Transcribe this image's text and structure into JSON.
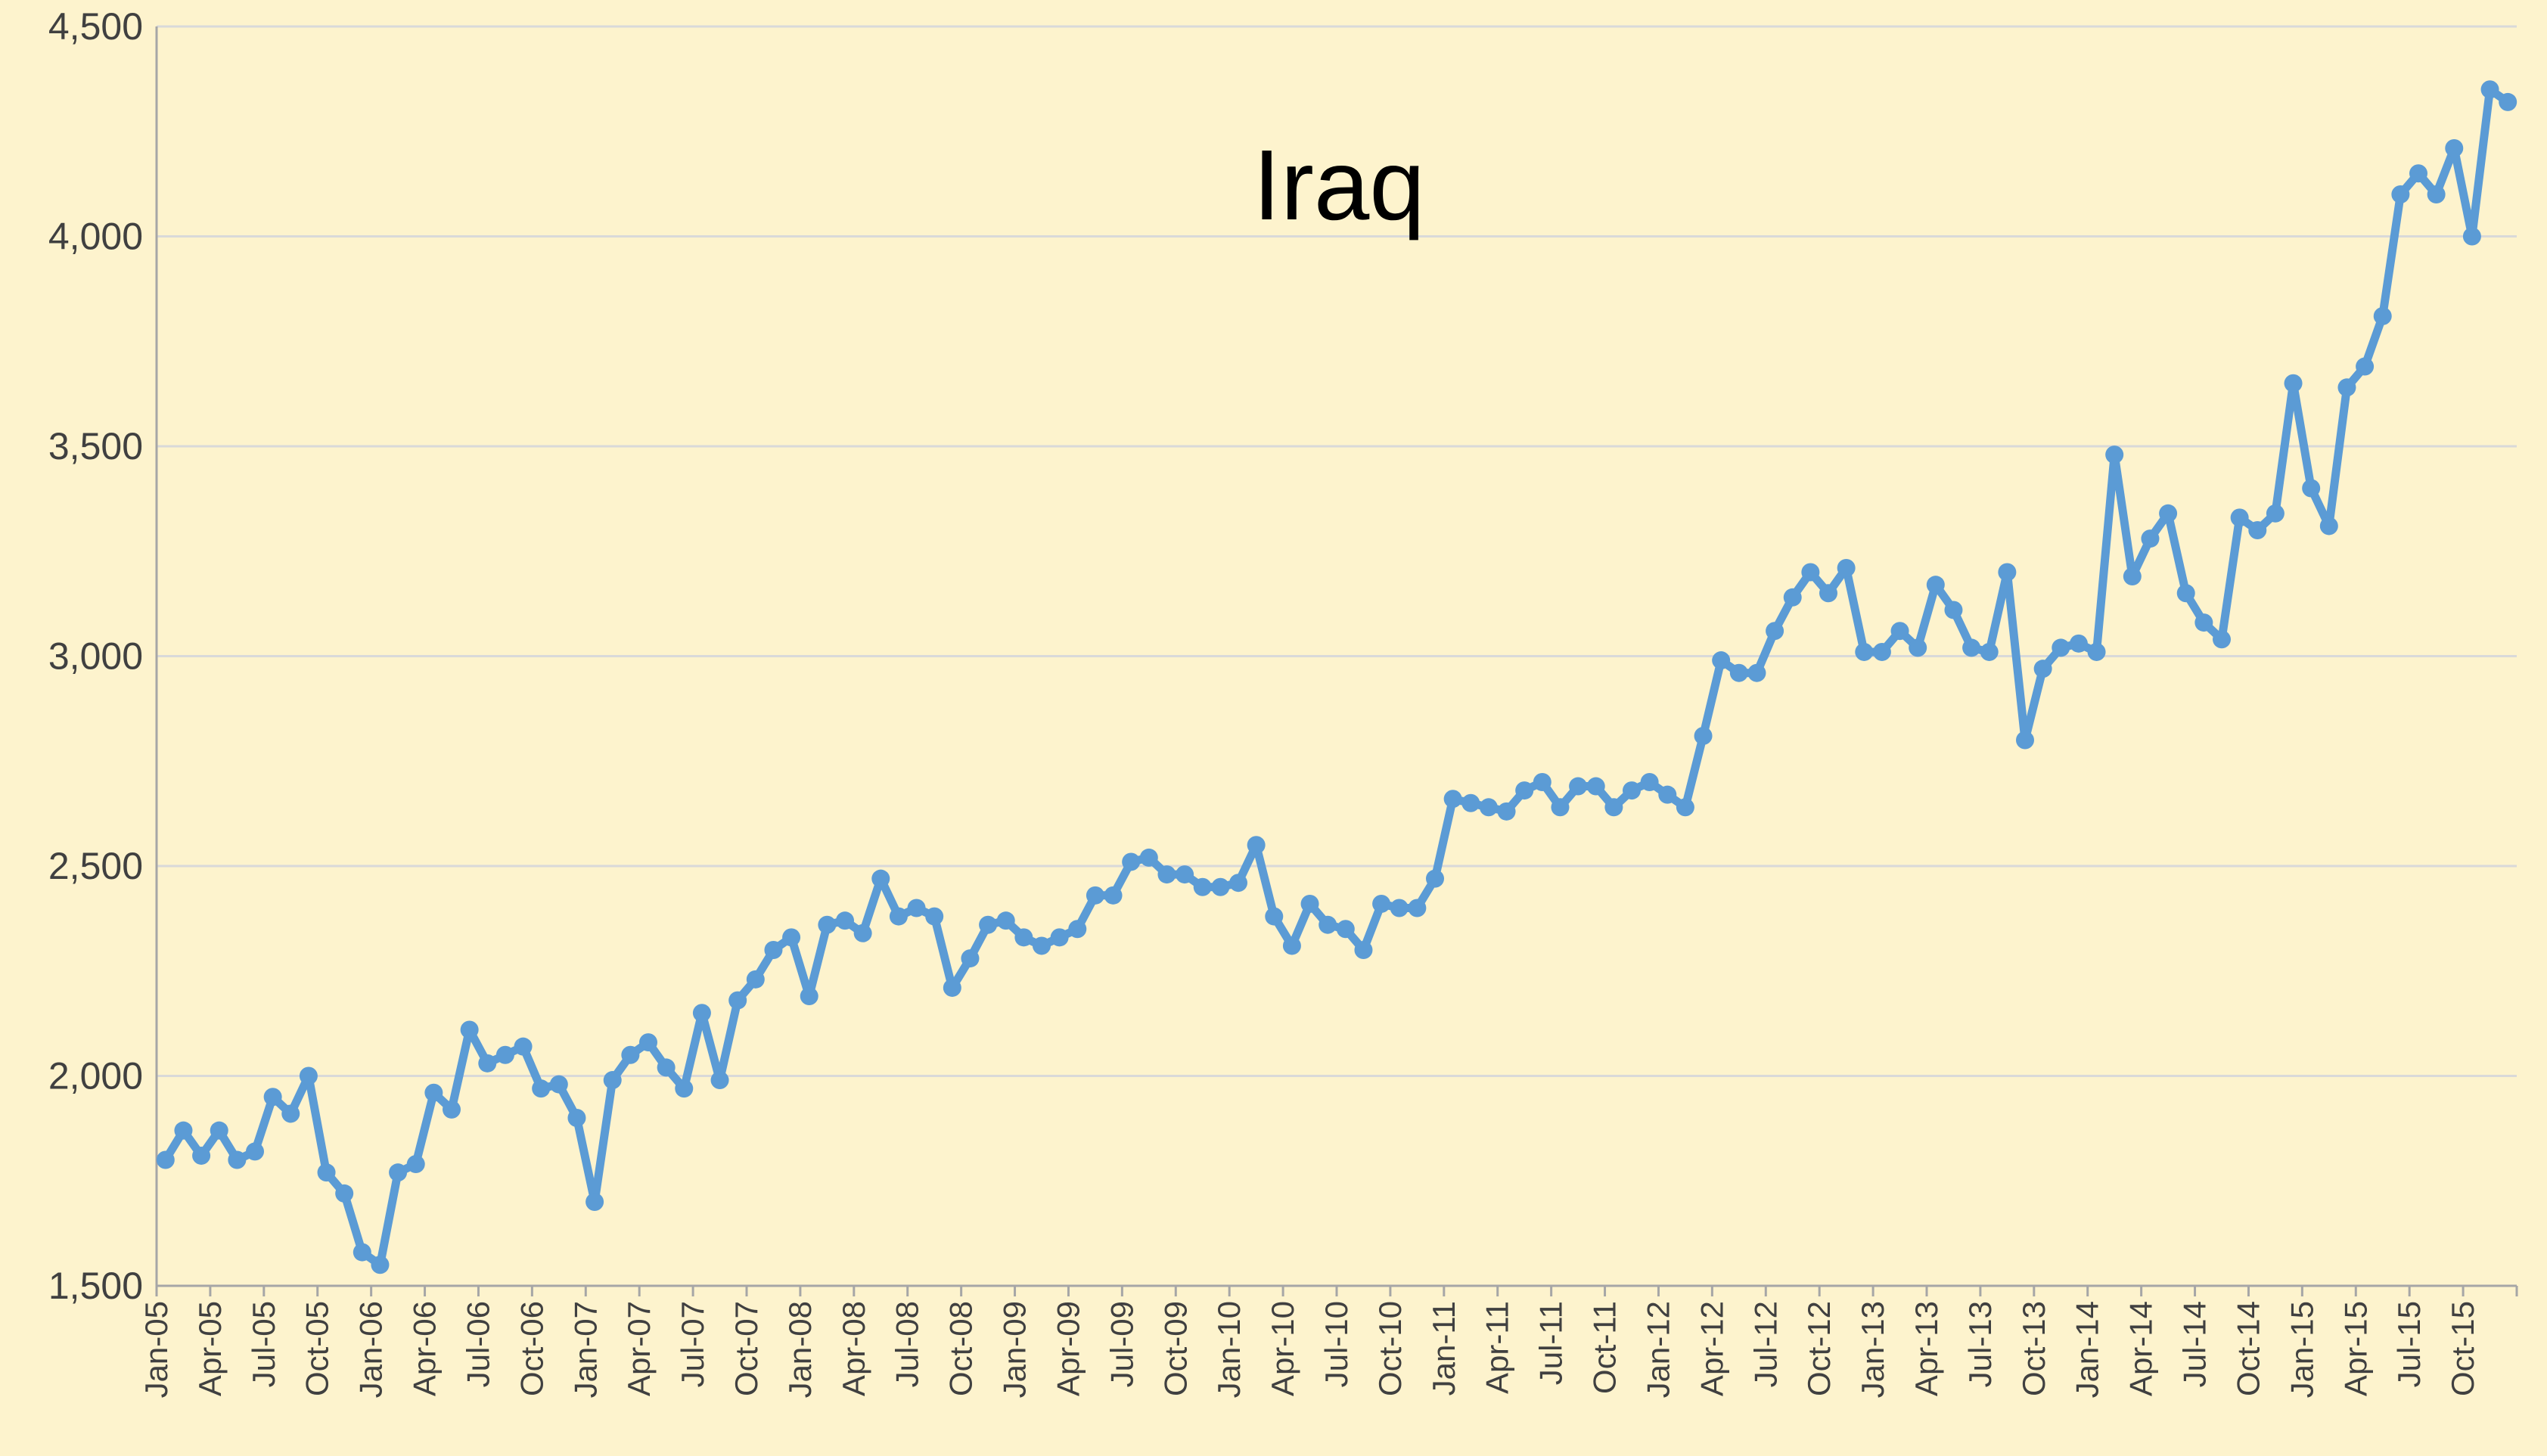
{
  "chart_data": {
    "type": "line",
    "title": "Iraq",
    "xlabel": "",
    "ylabel": "",
    "ylim": [
      1500,
      4500
    ],
    "y_ticks": [
      "1,500",
      "2,000",
      "2,500",
      "3,000",
      "3,500",
      "4,000",
      "4,500"
    ],
    "x_tick_labels": [
      "Jan-05",
      "Apr-05",
      "Jul-05",
      "Oct-05",
      "Jan-06",
      "Apr-06",
      "Jul-06",
      "Oct-06",
      "Jan-07",
      "Apr-07",
      "Jul-07",
      "Oct-07",
      "Jan-08",
      "Apr-08",
      "Jul-08",
      "Oct-08",
      "Jan-09",
      "Apr-09",
      "Jul-09",
      "Oct-09",
      "Jan-10",
      "Apr-10",
      "Jul-10",
      "Oct-10",
      "Jan-11",
      "Apr-11",
      "Jul-11",
      "Oct-11",
      "Jan-12",
      "Apr-12",
      "Jul-12",
      "Oct-12",
      "Jan-13",
      "Apr-13",
      "Jul-13",
      "Oct-13",
      "Jan-14",
      "Apr-14",
      "Jul-14",
      "Oct-14",
      "Jan-15",
      "Apr-15",
      "Jul-15",
      "Oct-15"
    ],
    "x_start": "Jan-05",
    "x_end": "Dec-15",
    "grid": true,
    "legend": "none",
    "series": [
      {
        "values": [
          1800,
          1870,
          1810,
          1870,
          1800,
          1820,
          1950,
          1910,
          2000,
          1770,
          1720,
          1580,
          1550,
          1770,
          1790,
          1960,
          1920,
          2110,
          2030,
          2050,
          2070,
          1970,
          1980,
          1900,
          1700,
          1990,
          2050,
          2080,
          2020,
          1970,
          2150,
          1990,
          2180,
          2230,
          2300,
          2330,
          2190,
          2360,
          2370,
          2340,
          2470,
          2380,
          2400,
          2380,
          2210,
          2280,
          2360,
          2370,
          2330,
          2310,
          2330,
          2350,
          2430,
          2430,
          2510,
          2520,
          2480,
          2480,
          2450,
          2450,
          2460,
          2550,
          2380,
          2310,
          2410,
          2360,
          2350,
          2300,
          2410,
          2400,
          2400,
          2470,
          2660,
          2650,
          2640,
          2630,
          2680,
          2700,
          2640,
          2690,
          2690,
          2640,
          2680,
          2700,
          2670,
          2640,
          2810,
          2990,
          2960,
          2960,
          3060,
          3140,
          3200,
          3150,
          3210,
          3010,
          3010,
          3060,
          3020,
          3170,
          3110,
          3020,
          3010,
          3200,
          2800,
          2970,
          3020,
          3030,
          3010,
          3480,
          3190,
          3280,
          3340,
          3150,
          3080,
          3040,
          3330,
          3300,
          3340,
          3650,
          3400,
          3310,
          3640,
          3690,
          3810,
          4100,
          4150,
          4100,
          4210,
          4000,
          4350,
          4320
        ]
      }
    ],
    "colors": {
      "background": "#fdf3cd",
      "line": "#5b9bd5",
      "grid": "#d9d9d9",
      "axis": "#a6a6a6"
    }
  }
}
